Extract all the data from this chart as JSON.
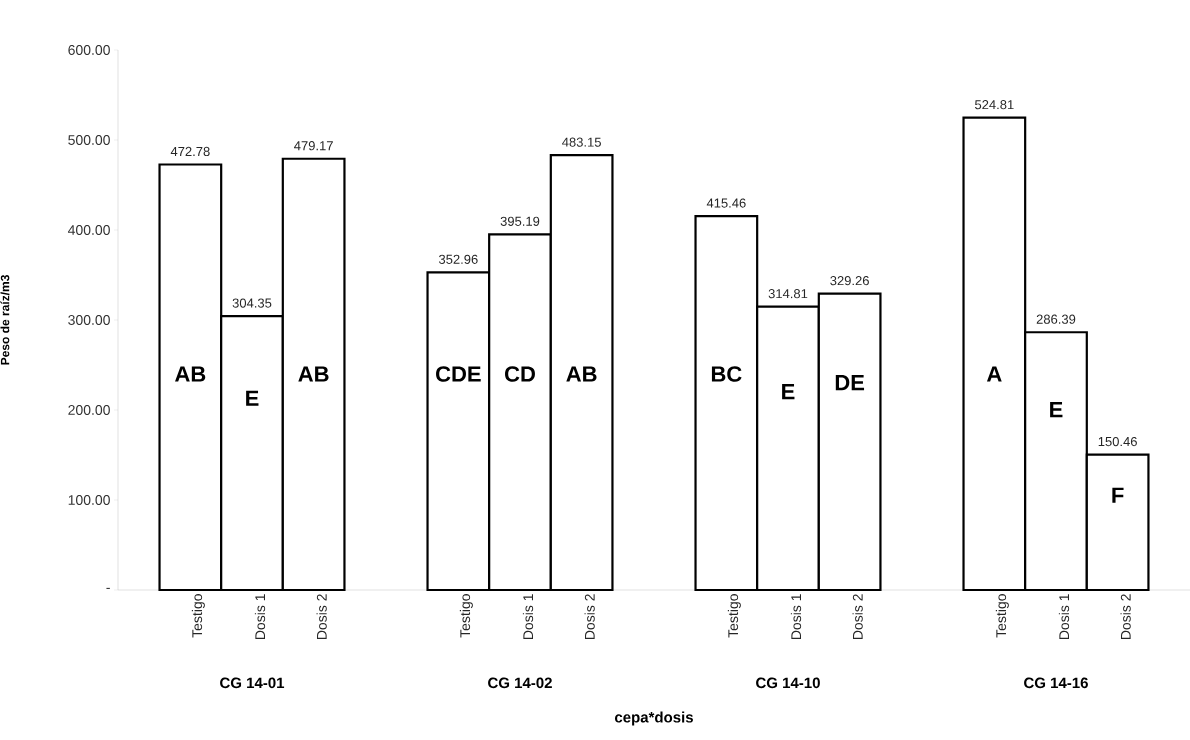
{
  "chart_data": {
    "type": "bar",
    "xlabel": "cepa*dosis",
    "ylabel": "Peso de raíz/m3",
    "categories": [
      "CG 14-01",
      "CG 14-02",
      "CG 14-10",
      "CG 14-16"
    ],
    "series": [
      {
        "name": "Testigo",
        "color": "#ffffff",
        "values": [
          472.78,
          352.96,
          415.46,
          524.81
        ]
      },
      {
        "name": "Dosis 1",
        "color": "#ffffff",
        "values": [
          304.35,
          395.19,
          314.81,
          286.39
        ]
      },
      {
        "name": "Dosis 2",
        "color": "#ffffff",
        "values": [
          479.17,
          483.15,
          329.26,
          150.46
        ]
      }
    ],
    "ylim": [
      0,
      600
    ],
    "yticks": [
      {
        "value": 0,
        "label": "-"
      },
      {
        "value": 100,
        "label": "100.00"
      },
      {
        "value": 200,
        "label": "200.00"
      },
      {
        "value": 300,
        "label": "300.00"
      },
      {
        "value": 400,
        "label": "400.00"
      },
      {
        "value": 500,
        "label": "500.00"
      },
      {
        "value": 600,
        "label": "600.00"
      }
    ],
    "data_labels": true,
    "annotations": [
      "AB",
      "E",
      "AB",
      "CDE",
      "CD",
      "AB",
      "BC",
      "E",
      "DE",
      "A",
      "E",
      "F"
    ]
  }
}
